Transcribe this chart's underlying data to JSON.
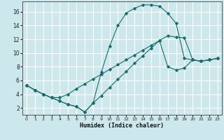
{
  "xlabel": "Humidex (Indice chaleur)",
  "bg_color": "#cde8ec",
  "grid_color": "#ffffff",
  "line_color": "#1a6b6b",
  "xlim": [
    -0.5,
    23.5
  ],
  "ylim": [
    1,
    17.5
  ],
  "xticks": [
    0,
    1,
    2,
    3,
    4,
    5,
    6,
    7,
    8,
    9,
    10,
    11,
    12,
    13,
    14,
    15,
    16,
    17,
    18,
    19,
    20,
    21,
    22,
    23
  ],
  "yticks": [
    2,
    4,
    6,
    8,
    10,
    12,
    14,
    16
  ],
  "curve1_x": [
    0,
    1,
    2,
    3,
    4,
    5,
    6,
    7,
    8,
    9,
    10,
    11,
    12,
    13,
    14,
    15,
    16,
    17,
    18,
    19,
    20,
    21,
    22,
    23
  ],
  "curve1_y": [
    5.3,
    4.6,
    4.0,
    3.5,
    3.0,
    2.5,
    2.2,
    1.4,
    2.7,
    7.2,
    11.0,
    14.0,
    15.8,
    16.5,
    17.0,
    17.0,
    16.8,
    15.8,
    14.3,
    9.2,
    9.0,
    8.8,
    9.0,
    9.2
  ],
  "curve2_x": [
    0,
    1,
    2,
    3,
    4,
    5,
    6,
    7,
    8,
    9,
    10,
    11,
    12,
    13,
    14,
    15,
    16,
    17,
    18,
    19,
    20,
    21,
    22,
    23
  ],
  "curve2_y": [
    5.3,
    4.6,
    4.0,
    3.5,
    3.5,
    4.0,
    4.8,
    5.5,
    6.2,
    6.9,
    7.6,
    8.3,
    9.0,
    9.7,
    10.4,
    11.1,
    11.8,
    12.5,
    12.3,
    12.2,
    9.0,
    8.8,
    9.0,
    9.2
  ],
  "curve3_x": [
    0,
    1,
    2,
    3,
    4,
    5,
    6,
    7,
    8,
    9,
    10,
    11,
    12,
    13,
    14,
    15,
    16,
    17,
    18,
    19,
    20,
    21,
    22,
    23
  ],
  "curve3_y": [
    5.3,
    4.6,
    4.0,
    3.5,
    3.0,
    2.5,
    2.2,
    1.4,
    2.7,
    3.8,
    5.0,
    6.2,
    7.3,
    8.5,
    9.6,
    10.7,
    11.8,
    8.0,
    7.5,
    7.8,
    9.0,
    8.8,
    9.0,
    9.2
  ]
}
